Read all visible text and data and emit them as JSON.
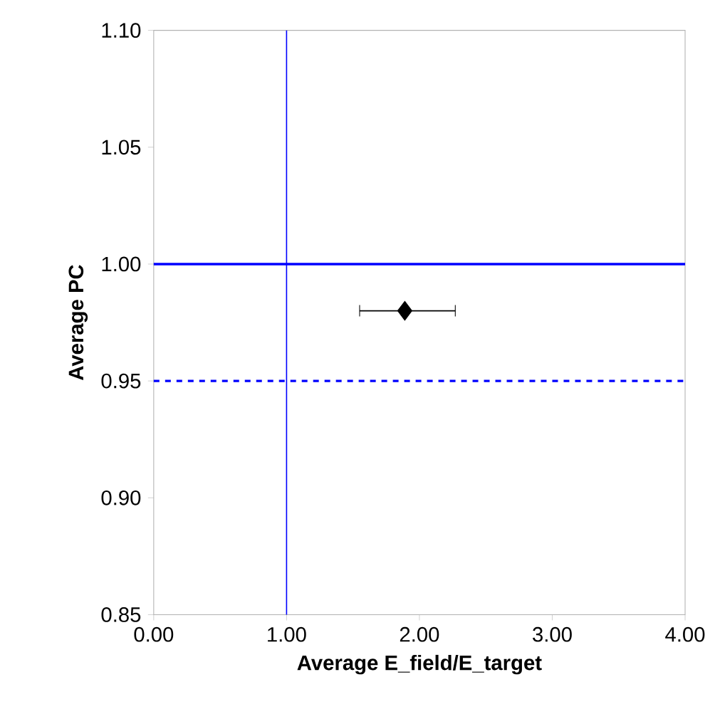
{
  "chart_data": {
    "type": "scatter",
    "xlabel": "Average E_field/E_target",
    "ylabel": "Average PC",
    "series": [
      {
        "color": "#000000",
        "x": [
          1.89
        ],
        "values": [
          0.98
        ],
        "xerrors": [
          [
            1.55,
            2.27
          ]
        ],
        "marker": "diamond"
      }
    ],
    "xlim": [
      0,
      4
    ],
    "ylim": [
      0.85,
      1.1
    ],
    "xticks": [
      {
        "value": 0,
        "label": "0.00"
      },
      {
        "value": 1,
        "label": "1.00"
      },
      {
        "value": 2,
        "label": "2.00"
      },
      {
        "value": 3,
        "label": "3.00"
      },
      {
        "value": 4,
        "label": "4.00"
      }
    ],
    "yticks": [
      {
        "value": 0.85,
        "label": "0.85"
      },
      {
        "value": 0.9,
        "label": "0.90"
      },
      {
        "value": 0.95,
        "label": "0.95"
      },
      {
        "value": 1.0,
        "label": "1.00"
      },
      {
        "value": 1.05,
        "label": "1.05"
      },
      {
        "value": 1.1,
        "label": "1.10"
      }
    ],
    "ref_lines": [
      {
        "axis": "x",
        "value": 1,
        "color": "#0000ff",
        "line_style": "solid"
      },
      {
        "axis": "y",
        "value": 1,
        "color": "#0000ff",
        "line_style": "solid"
      },
      {
        "axis": "y",
        "value": 0.95,
        "color": "#0000ff",
        "line_style": "dashed"
      }
    ]
  }
}
